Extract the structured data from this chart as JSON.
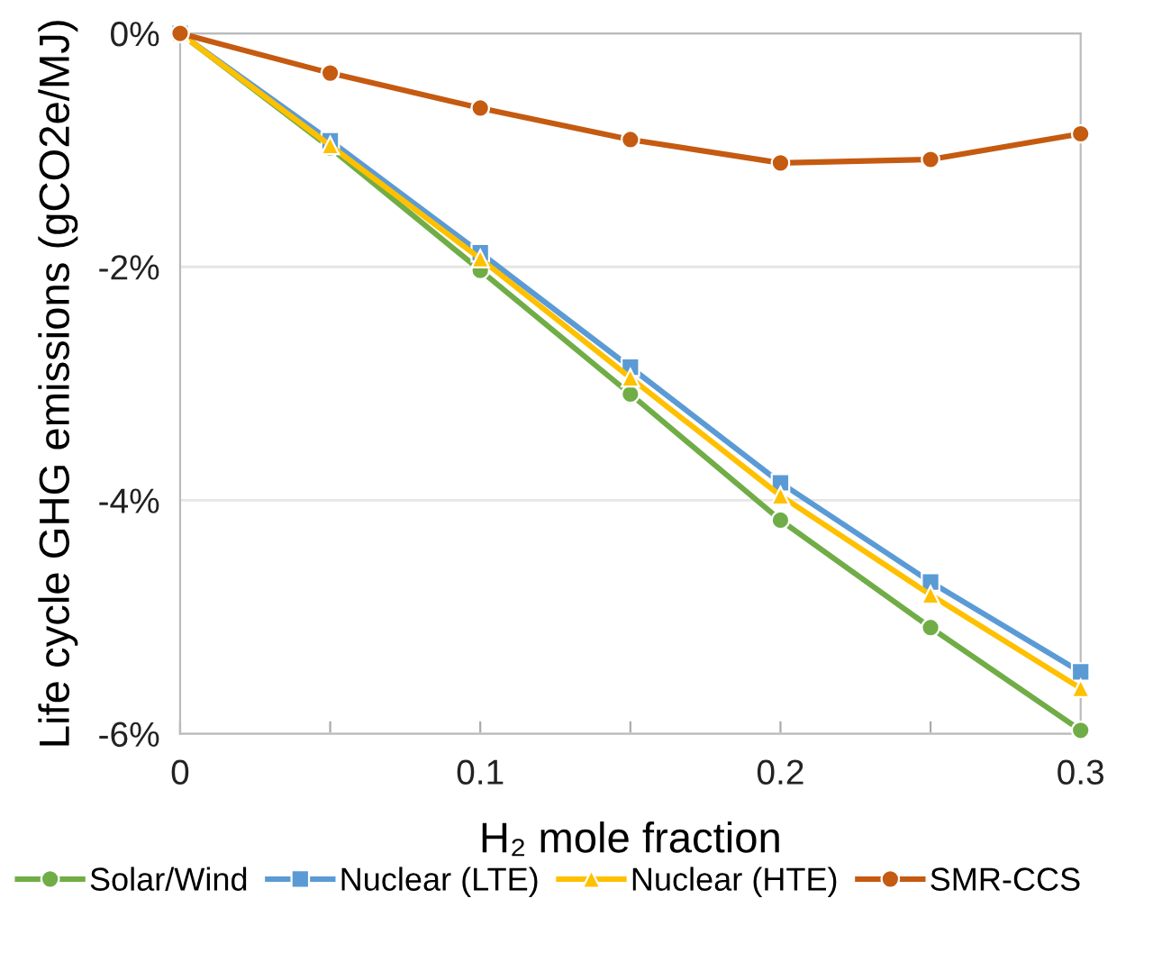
{
  "chart_data": {
    "type": "line",
    "xlabel": "H₂ mole fraction",
    "ylabel": "Life cycle GHG emissions (gCO2e/MJ)",
    "x": [
      0,
      0.05,
      0.1,
      0.15,
      0.2,
      0.25,
      0.3
    ],
    "series": [
      {
        "name": "Solar/Wind",
        "color": "#70ad47",
        "marker": "circle",
        "values": [
          0,
          -0.98,
          -2.03,
          -3.09,
          -4.17,
          -5.09,
          -5.97
        ]
      },
      {
        "name": "Nuclear (LTE)",
        "color": "#5b9bd5",
        "marker": "square",
        "values": [
          0,
          -0.92,
          -1.88,
          -2.86,
          -3.85,
          -4.7,
          -5.47
        ]
      },
      {
        "name": "Nuclear (HTE)",
        "color": "#ffc000",
        "marker": "triangle",
        "values": [
          0,
          -0.96,
          -1.93,
          -2.95,
          -3.96,
          -4.81,
          -5.61
        ]
      },
      {
        "name": "SMR-CCS",
        "color": "#c55a11",
        "marker": "circle",
        "values": [
          0,
          -0.34,
          -0.64,
          -0.91,
          -1.11,
          -1.08,
          -0.86
        ]
      }
    ],
    "xlim": [
      0,
      0.3
    ],
    "ylim": [
      -6,
      0
    ],
    "xticks": [
      0,
      {
        "value": 0.05,
        "label": null
      },
      0.1,
      {
        "value": 0.15,
        "label": null
      },
      0.2,
      {
        "value": 0.25,
        "label": null
      },
      0.3
    ],
    "yticks": [
      {
        "value": -6,
        "label": "-6%"
      },
      {
        "value": -4,
        "label": "-4%"
      },
      {
        "value": -2,
        "label": "-2%"
      },
      {
        "value": 0,
        "label": "0%"
      }
    ],
    "grid": "y",
    "legend": "bottom"
  }
}
